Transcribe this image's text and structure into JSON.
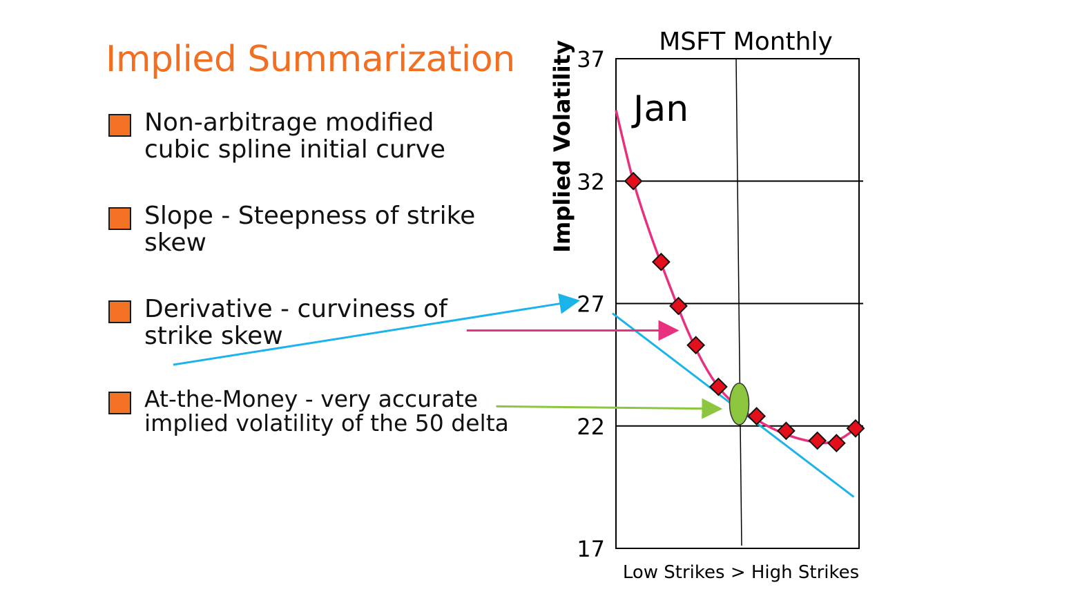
{
  "slide": {
    "title": "Implied Summarization",
    "bullets": [
      {
        "line1": "Non-arbitrage modified",
        "line2": "cubic spline initial curve"
      },
      {
        "line1": "Slope - Steepness of strike",
        "line2": "skew"
      },
      {
        "line1": "Derivative - curviness of",
        "line2": "strike skew"
      },
      {
        "line1": "At-the-Money - very accurate",
        "line2": "implied volatility of the 50 delta"
      }
    ]
  },
  "colors": {
    "title": "#f26f21",
    "bullet_square": "#f47224",
    "curve": "#e8307f",
    "slope_line": "#1ab3ea",
    "atm_marker": "#8cc63f",
    "points": "#e3101b",
    "slope_arrow": "#1ab3ea",
    "derivative_arrow": "#e8307f",
    "atm_arrow": "#8cc63f"
  },
  "chart_data": {
    "type": "scatter",
    "title": "MSFT Monthly",
    "annotation": "Jan",
    "xlabel": "Low Strikes > High Strikes",
    "ylabel": "Implied Volatility",
    "ylim": [
      17,
      37
    ],
    "xlim": [
      0,
      14
    ],
    "yticks": [
      37,
      32,
      27,
      22,
      17
    ],
    "points": [
      {
        "x": 1.0,
        "y": 32.0
      },
      {
        "x": 2.6,
        "y": 28.7
      },
      {
        "x": 3.6,
        "y": 26.9
      },
      {
        "x": 4.6,
        "y": 25.3
      },
      {
        "x": 5.9,
        "y": 23.6
      },
      {
        "x": 8.1,
        "y": 22.4
      },
      {
        "x": 9.8,
        "y": 21.8
      },
      {
        "x": 11.6,
        "y": 21.4
      },
      {
        "x": 12.7,
        "y": 21.3
      },
      {
        "x": 13.8,
        "y": 21.9
      }
    ],
    "fitted_curve": [
      {
        "x": 0.0,
        "y": 34.9
      },
      {
        "x": 1.0,
        "y": 32.0
      },
      {
        "x": 2.0,
        "y": 29.8
      },
      {
        "x": 3.0,
        "y": 27.9
      },
      {
        "x": 4.0,
        "y": 26.1
      },
      {
        "x": 5.0,
        "y": 24.6
      },
      {
        "x": 6.0,
        "y": 23.5
      },
      {
        "x": 7.0,
        "y": 22.8
      },
      {
        "x": 8.0,
        "y": 22.3
      },
      {
        "x": 9.0,
        "y": 21.9
      },
      {
        "x": 10.0,
        "y": 21.6
      },
      {
        "x": 11.0,
        "y": 21.4
      },
      {
        "x": 12.0,
        "y": 21.3
      },
      {
        "x": 13.0,
        "y": 21.5
      },
      {
        "x": 14.0,
        "y": 22.0
      }
    ],
    "slope_line": [
      {
        "x": -0.2,
        "y": 26.6
      },
      {
        "x": 13.7,
        "y": 19.1
      }
    ],
    "atm": {
      "x": 7.1,
      "y": 22.9
    },
    "vertical_line_x": 7.0,
    "arrows": [
      {
        "name": "slope",
        "from": [
          -25.5,
          24.5
        ],
        "to": [
          -2.3,
          27.1
        ]
      },
      {
        "name": "derivative",
        "from": [
          -8.6,
          25.9
        ],
        "to": [
          3.4,
          25.9
        ]
      },
      {
        "name": "atm",
        "from": [
          -6.9,
          22.8
        ],
        "to": [
          5.9,
          22.7
        ]
      }
    ]
  }
}
